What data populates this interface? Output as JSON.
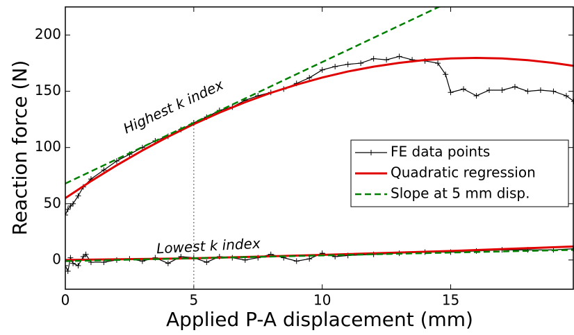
{
  "chart_data": {
    "type": "line",
    "xlabel": "Applied P-A displacement (mm)",
    "ylabel": "Reaction force (N)",
    "xlim": [
      0,
      19.8
    ],
    "ylim": [
      -26,
      225
    ],
    "xticks": [
      0,
      5,
      10,
      15
    ],
    "yticks": [
      0,
      50,
      100,
      150,
      200
    ],
    "grid": false,
    "legend": "center right",
    "vline": 5,
    "annotations": [
      "Highest k index",
      "Lowest k index"
    ],
    "annotation_color": "#1a1adf",
    "series": [
      {
        "name": "FE data points",
        "color": "#000000",
        "style": "solid",
        "marker": "+",
        "x": [
          0,
          0.1,
          0.2,
          0.3,
          0.5,
          0.7,
          1,
          1.5,
          2,
          2.5,
          3,
          3.5,
          4,
          4.5,
          5,
          5.5,
          6,
          6.5,
          7,
          7.5,
          8,
          8.5,
          9,
          9.5,
          10,
          10.5,
          11,
          11.5,
          12,
          12.5,
          13,
          13.5,
          14,
          14.5,
          14.8,
          15,
          15.5,
          16,
          16.5,
          17,
          17.5,
          18,
          18.5,
          19,
          19.5,
          19.8
        ],
        "values": [
          40,
          45,
          48,
          50,
          57,
          65,
          72,
          80,
          88,
          94,
          100,
          106,
          110,
          116,
          122,
          127,
          133,
          136,
          142,
          146,
          149,
          152,
          157,
          162,
          169,
          172,
          174,
          175,
          179,
          178,
          181,
          178,
          177,
          175,
          165,
          149,
          152,
          146,
          151,
          151,
          154,
          150,
          151,
          150,
          146,
          141
        ]
      },
      {
        "name": "Quadratic regression",
        "color": "#e00000",
        "style": "solid",
        "x": [
          0,
          1,
          2,
          3,
          4,
          5,
          6,
          7,
          8,
          9,
          10,
          11,
          12,
          13,
          14,
          15,
          16,
          17,
          18,
          19,
          19.8
        ],
        "values": [
          55,
          70.1,
          84.2,
          97.4,
          109.6,
          120.8,
          131.0,
          140.3,
          148.6,
          155.9,
          162.2,
          167.6,
          171.9,
          175.3,
          177.8,
          179.2,
          179.7,
          179.2,
          177.7,
          175.2,
          172.6
        ]
      },
      {
        "name": "Slope at 5 mm disp.",
        "color": "#008000",
        "style": "dashed",
        "x": [
          0,
          19.8
        ],
        "values": [
          68,
          281.8
        ]
      },
      {
        "color": "#000000",
        "style": "solid",
        "marker": "+",
        "x": [
          0,
          0.1,
          0.2,
          0.3,
          0.5,
          0.7,
          0.8,
          1,
          1.5,
          2,
          2.5,
          3,
          3.5,
          4,
          4.5,
          5,
          5.5,
          6,
          6.5,
          7,
          7.5,
          8,
          8.5,
          9,
          9.5,
          10,
          10.5,
          11,
          12,
          13,
          14,
          15,
          16,
          17,
          18,
          19,
          19.8
        ],
        "values": [
          -5,
          -10,
          2,
          -3,
          -5,
          3,
          5,
          -2,
          -2,
          0,
          1,
          -1,
          2,
          -3,
          3,
          2,
          -2,
          3,
          2,
          0,
          2,
          5,
          2,
          -1,
          1,
          6,
          3,
          4,
          5,
          6,
          7,
          7,
          8,
          9,
          9,
          9,
          10
        ]
      },
      {
        "color": "#e00000",
        "style": "solid",
        "x": [
          0,
          5,
          10,
          15,
          19.8
        ],
        "values": [
          0,
          1.5,
          4.5,
          8,
          12
        ]
      },
      {
        "color": "#008000",
        "style": "dashed",
        "x": [
          0,
          19.8
        ],
        "values": [
          -1,
          9
        ]
      }
    ]
  }
}
